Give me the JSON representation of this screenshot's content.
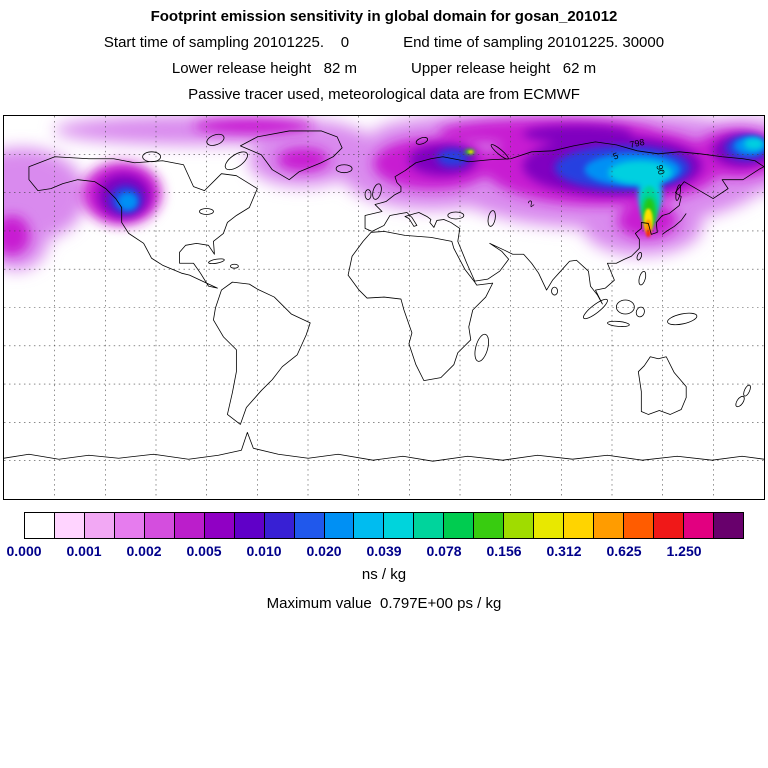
{
  "header": {
    "title": "Footprint emission sensitivity in global domain for gosan_201012",
    "line2_left": "Start time of sampling 20101225.    0",
    "line2_right": "End time of sampling 20101225. 30000",
    "line3_left": "Lower release height   82 m",
    "line3_right": "Upper release height   62 m",
    "line4": "Passive tracer used, meteorological data are from ECMWF"
  },
  "map": {
    "contour_labels": [
      "5",
      "798",
      "90",
      "2"
    ]
  },
  "colorbar": {
    "tick_labels": [
      "0.000",
      "0.001",
      "0.002",
      "0.005",
      "0.010",
      "0.020",
      "0.039",
      "0.078",
      "0.156",
      "0.312",
      "0.625",
      "1.250"
    ],
    "segment_colors": [
      "#ffffff",
      "#ffd4ff",
      "#f2a8f4",
      "#e67cee",
      "#d44ede",
      "#bb1ecb",
      "#9000c4",
      "#6000c8",
      "#3820d4",
      "#2058ec",
      "#0090f4",
      "#00bcf0",
      "#00d4dc",
      "#00d49c",
      "#00cc50",
      "#38cc10",
      "#a0dc00",
      "#e8e800",
      "#ffd400",
      "#ff9c00",
      "#ff5c00",
      "#f01818",
      "#e20080",
      "#68006c"
    ],
    "unit": "ns / kg"
  },
  "footer": {
    "max_value_line": "Maximum value  0.797E+00 ps / kg"
  },
  "chart_data": {
    "type": "heatmap",
    "title": "Footprint emission sensitivity in global domain for gosan_201012",
    "projection": "equirectangular, global (180W-180E, 90S-90N)",
    "colorbar_levels": [
      0.0,
      0.001,
      0.002,
      0.005,
      0.01,
      0.02,
      0.039,
      0.078,
      0.156,
      0.312,
      0.625,
      1.25
    ],
    "unit": "ns / kg",
    "maximum_value": "0.797E+00 ps / kg",
    "start_time": "20101225. 0",
    "end_time": "20101225. 30000",
    "lower_release_height_m": 82,
    "upper_release_height_m": 62,
    "tracer": "Passive tracer, meteorological data from ECMWF",
    "grid": true,
    "high_sensitivity_regions": [
      {
        "region": "East Asia near Gosan, Korea (receptor)",
        "approx_level_ns_per_kg": "0.078 - 0.8 (green/yellow/orange/red streak)"
      },
      {
        "region": "Northwest Pacific / Japan / Siberia",
        "approx_level_ns_per_kg": "0.005 - 0.039 (purple/blue/cyan)"
      },
      {
        "region": "North Pacific (map left edge, wrap-around)",
        "approx_level_ns_per_kg": "0.005 - 0.02 (magenta/blue)"
      },
      {
        "region": "Bering Sea / NE Pacific (top right corner)",
        "approx_level_ns_per_kg": "0.01 - 0.039 (blue/cyan)"
      },
      {
        "region": "Northern Europe / North Atlantic",
        "approx_level_ns_per_kg": "0.002 - 0.02 (magenta/purple, small green spot)"
      },
      {
        "region": "Arctic Canada / Greenland",
        "approx_level_ns_per_kg": "0.001 - 0.005 (pale violet/magenta patches)"
      }
    ]
  }
}
